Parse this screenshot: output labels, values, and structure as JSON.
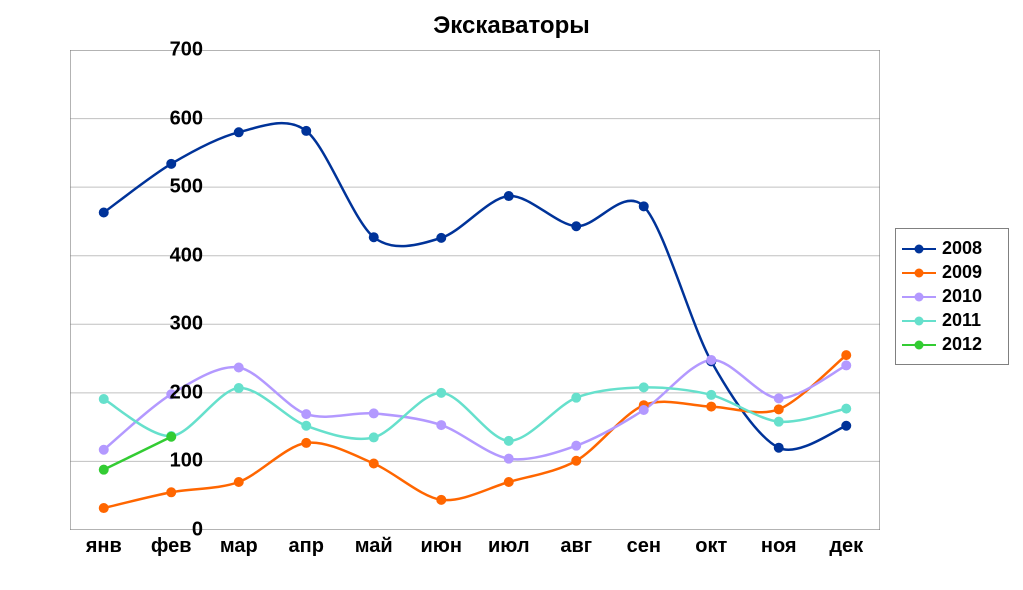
{
  "chart": {
    "type": "line",
    "title": "Экскаваторы",
    "title_fontsize": 24,
    "title_fontweight": "bold",
    "background_color": "#ffffff",
    "axis_color": "#808080",
    "grid_color": "#c0c0c0",
    "grid_on": true,
    "xlabels": [
      "янв",
      "фев",
      "мар",
      "апр",
      "май",
      "июн",
      "июл",
      "авг",
      "сен",
      "окт",
      "ноя",
      "дек"
    ],
    "ylim": [
      0,
      700
    ],
    "ytick_step": 100,
    "yticks": [
      0,
      100,
      200,
      300,
      400,
      500,
      600,
      700
    ],
    "tick_fontsize": 20,
    "tick_fontweight": "bold",
    "line_width": 2.5,
    "marker_style": "circle",
    "marker_size": 9,
    "series": [
      {
        "name": "2008",
        "color": "#003399",
        "values": [
          463,
          534,
          580,
          582,
          427,
          426,
          487,
          443,
          472,
          246,
          120,
          152
        ]
      },
      {
        "name": "2009",
        "color": "#ff6600",
        "values": [
          32,
          55,
          70,
          127,
          97,
          44,
          70,
          101,
          182,
          180,
          176,
          255
        ]
      },
      {
        "name": "2010",
        "color": "#b399ff",
        "values": [
          117,
          198,
          237,
          169,
          170,
          153,
          104,
          123,
          175,
          248,
          192,
          240
        ]
      },
      {
        "name": "2011",
        "color": "#66e0cc",
        "values": [
          191,
          137,
          207,
          152,
          135,
          200,
          130,
          193,
          208,
          197,
          158,
          177
        ]
      },
      {
        "name": "2012",
        "color": "#33cc33",
        "values": [
          88,
          136
        ]
      }
    ],
    "legend": {
      "position": "right",
      "border_color": "#808080",
      "label_fontsize": 18,
      "label_fontweight": "bold"
    }
  }
}
